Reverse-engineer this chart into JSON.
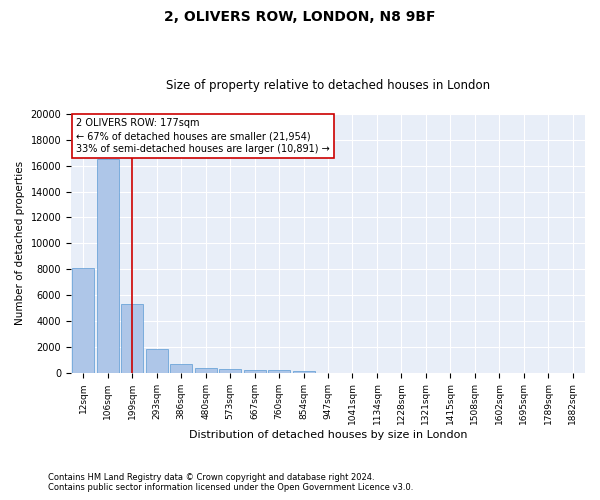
{
  "title1": "2, OLIVERS ROW, LONDON, N8 9BF",
  "title2": "Size of property relative to detached houses in London",
  "xlabel": "Distribution of detached houses by size in London",
  "ylabel": "Number of detached properties",
  "footnote1": "Contains HM Land Registry data © Crown copyright and database right 2024.",
  "footnote2": "Contains public sector information licensed under the Open Government Licence v3.0.",
  "bin_labels": [
    "12sqm",
    "106sqm",
    "199sqm",
    "293sqm",
    "386sqm",
    "480sqm",
    "573sqm",
    "667sqm",
    "760sqm",
    "854sqm",
    "947sqm",
    "1041sqm",
    "1134sqm",
    "1228sqm",
    "1321sqm",
    "1415sqm",
    "1508sqm",
    "1602sqm",
    "1695sqm",
    "1789sqm",
    "1882sqm"
  ],
  "bar_heights": [
    8100,
    16500,
    5300,
    1850,
    650,
    350,
    280,
    200,
    200,
    100,
    0,
    0,
    0,
    0,
    0,
    0,
    0,
    0,
    0,
    0,
    0
  ],
  "bar_color": "#aec6e8",
  "bar_edge_color": "#5b9bd5",
  "red_line_index": 2,
  "red_line_color": "#cc0000",
  "annotation_line1": "2 OLIVERS ROW: 177sqm",
  "annotation_line2": "← 67% of detached houses are smaller (21,954)",
  "annotation_line3": "33% of semi-detached houses are larger (10,891) →",
  "annotation_box_color": "white",
  "annotation_box_edge": "#cc0000",
  "ylim": [
    0,
    20000
  ],
  "yticks": [
    0,
    2000,
    4000,
    6000,
    8000,
    10000,
    12000,
    14000,
    16000,
    18000,
    20000
  ],
  "background_color": "#e8eef8",
  "grid_color": "white",
  "title1_fontsize": 10,
  "title2_fontsize": 8.5,
  "ylabel_fontsize": 7.5,
  "xlabel_fontsize": 8,
  "tick_fontsize": 6.5,
  "ytick_fontsize": 7,
  "footnote_fontsize": 6,
  "annotation_fontsize": 7
}
